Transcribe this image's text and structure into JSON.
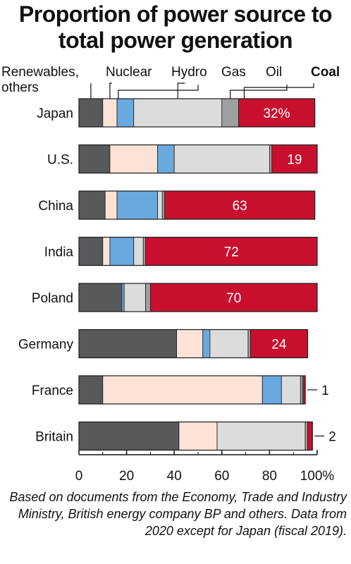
{
  "title": "Proportion of power source to total power generation",
  "footnote": "Based on documents from the Economy, Trade and Industry Ministry, British energy company BP and others. Data from 2020 except for Japan (fiscal 2019).",
  "colors": {
    "Renewables, others": "#58595b",
    "Nuclear": "#fde3d7",
    "Hydro": "#6aa9dd",
    "Gas": "#dcdcdc",
    "Oil": "#9fa0a2",
    "Coal": "#c8102e"
  },
  "chart_data": {
    "type": "bar",
    "orientation": "horizontal",
    "stacked": true,
    "categories": [
      "Japan",
      "U.S.",
      "China",
      "India",
      "Poland",
      "Germany",
      "France",
      "Britain"
    ],
    "series": [
      {
        "name": "Renewables, others",
        "values": [
          10,
          13,
          11,
          10,
          18,
          41,
          10,
          42
        ]
      },
      {
        "name": "Nuclear",
        "values": [
          6,
          20,
          5,
          3,
          0,
          11,
          67,
          16
        ]
      },
      {
        "name": "Hydro",
        "values": [
          7,
          7,
          17,
          10,
          1,
          3,
          8,
          0
        ]
      },
      {
        "name": "Gas",
        "values": [
          37,
          40,
          2,
          4,
          9,
          16,
          8,
          37
        ]
      },
      {
        "name": "Oil",
        "values": [
          7,
          1,
          1,
          1,
          2,
          1,
          1,
          1
        ]
      },
      {
        "name": "Coal",
        "values": [
          32,
          19,
          63,
          72,
          70,
          24,
          1,
          2
        ]
      }
    ],
    "bar_labels": [
      "32%",
      "19",
      "63",
      "72",
      "70",
      "24",
      "1",
      "2"
    ],
    "xlim": [
      0,
      100
    ],
    "xticks": [
      "0",
      "20",
      "40",
      "60",
      "80",
      "100%"
    ],
    "legend_labels": [
      {
        "series": "Renewables, others",
        "text": "Renewables,\nothers"
      },
      {
        "series": "Nuclear",
        "text": "Nuclear"
      },
      {
        "series": "Hydro",
        "text": "Hydro"
      },
      {
        "series": "Gas",
        "text": "Gas"
      },
      {
        "series": "Oil",
        "text": "Oil"
      },
      {
        "series": "Coal",
        "text": "Coal"
      }
    ],
    "grid": false
  }
}
